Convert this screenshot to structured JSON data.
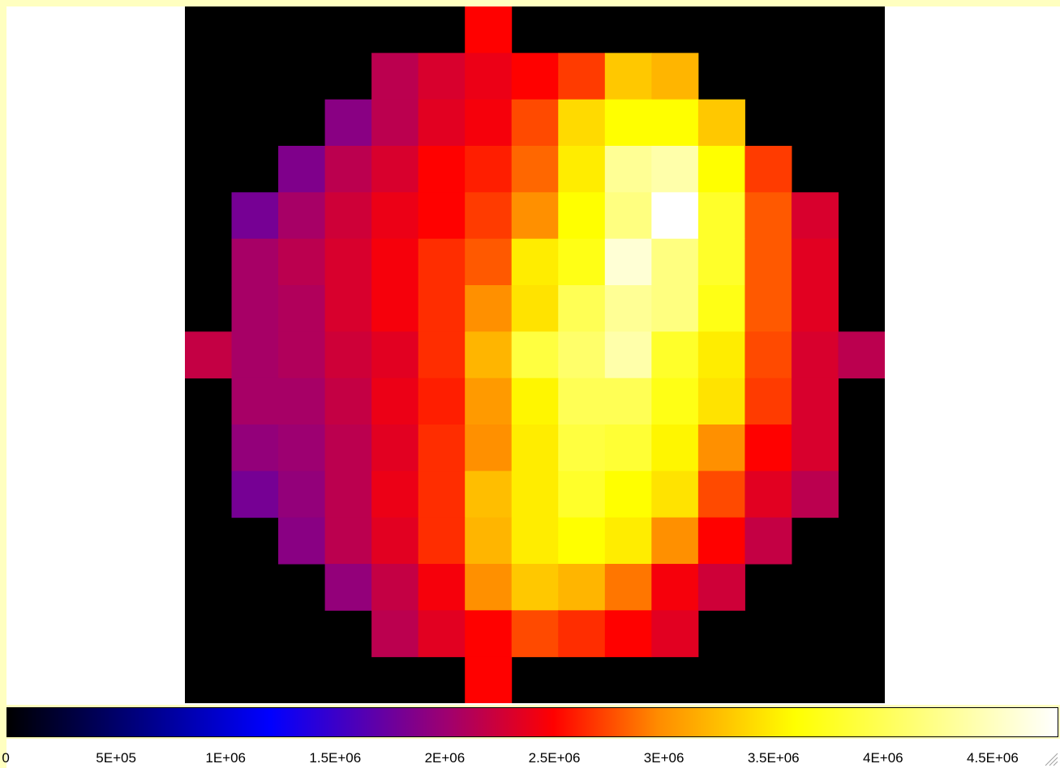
{
  "chart_data": {
    "type": "heatmap",
    "title": "",
    "xlabel": "",
    "ylabel": "",
    "colormap": "heat",
    "colorbar_range": [
      0,
      4800000
    ],
    "colorbar_ticks": [
      {
        "value": 0,
        "label": "0"
      },
      {
        "value": 500000,
        "label": "5E+05"
      },
      {
        "value": 1000000,
        "label": "1E+06"
      },
      {
        "value": 1500000,
        "label": "1.5E+06"
      },
      {
        "value": 2000000,
        "label": "2E+06"
      },
      {
        "value": 2500000,
        "label": "2.5E+06"
      },
      {
        "value": 3000000,
        "label": "3E+06"
      },
      {
        "value": 3500000,
        "label": "3.5E+06"
      },
      {
        "value": 4000000,
        "label": "4E+06"
      },
      {
        "value": 4500000,
        "label": "4.5E+06"
      }
    ],
    "grid_size": [
      15,
      15
    ],
    "background_color": "#000000",
    "cells_note": "row-major, top row first; null = empty (black) pixel",
    "values": [
      [
        null,
        null,
        null,
        null,
        null,
        null,
        2.5,
        null,
        null,
        null,
        null,
        null,
        null,
        null,
        null
      ],
      [
        null,
        null,
        null,
        null,
        2.15,
        2.3,
        2.4,
        2.5,
        2.7,
        3.3,
        3.2,
        null,
        null,
        null,
        null
      ],
      [
        null,
        null,
        null,
        1.9,
        2.15,
        2.35,
        2.45,
        2.75,
        3.4,
        3.6,
        3.6,
        3.3,
        null,
        null,
        null
      ],
      [
        null,
        null,
        1.85,
        2.15,
        2.3,
        2.5,
        2.6,
        2.85,
        3.5,
        4.3,
        4.4,
        3.6,
        2.7,
        null,
        null
      ],
      [
        null,
        1.8,
        2.05,
        2.25,
        2.4,
        2.5,
        2.7,
        3.0,
        3.6,
        4.2,
        4.8,
        3.8,
        2.8,
        2.3,
        null
      ],
      [
        null,
        2.05,
        2.15,
        2.3,
        2.45,
        2.65,
        2.8,
        3.5,
        3.7,
        4.6,
        4.2,
        3.8,
        2.8,
        2.35,
        null
      ],
      [
        null,
        2.05,
        2.1,
        2.3,
        2.45,
        2.65,
        3.0,
        3.45,
        4.0,
        4.3,
        4.2,
        3.7,
        2.8,
        2.35,
        null
      ],
      [
        2.2,
        2.05,
        2.1,
        2.25,
        2.35,
        2.65,
        3.2,
        3.9,
        4.1,
        4.4,
        3.8,
        3.5,
        2.75,
        2.3,
        2.15
      ],
      [
        null,
        2.05,
        2.05,
        2.2,
        2.4,
        2.6,
        3.05,
        3.55,
        4.0,
        4.0,
        3.7,
        3.45,
        2.7,
        2.3,
        null
      ],
      [
        null,
        1.95,
        2.0,
        2.15,
        2.35,
        2.65,
        3.0,
        3.5,
        3.9,
        3.85,
        3.55,
        3.0,
        2.5,
        2.3,
        null
      ],
      [
        null,
        1.8,
        1.95,
        2.15,
        2.4,
        2.65,
        3.25,
        3.5,
        3.8,
        3.6,
        3.45,
        2.75,
        2.35,
        2.15,
        null
      ],
      [
        null,
        null,
        1.9,
        2.15,
        2.35,
        2.65,
        3.2,
        3.5,
        3.6,
        3.5,
        3.0,
        2.5,
        2.2,
        null,
        null
      ],
      [
        null,
        null,
        null,
        1.95,
        2.2,
        2.45,
        3.0,
        3.3,
        3.2,
        2.9,
        2.45,
        2.25,
        null,
        null,
        null
      ],
      [
        null,
        null,
        null,
        null,
        2.15,
        2.35,
        2.5,
        2.75,
        2.65,
        2.5,
        2.35,
        null,
        null,
        null,
        null
      ],
      [
        null,
        null,
        null,
        null,
        null,
        null,
        2.5,
        null,
        null,
        null,
        null,
        null,
        null,
        null,
        null
      ]
    ],
    "values_unit": "millions"
  },
  "icons": {
    "resize_grip": "resize-grip-icon"
  }
}
